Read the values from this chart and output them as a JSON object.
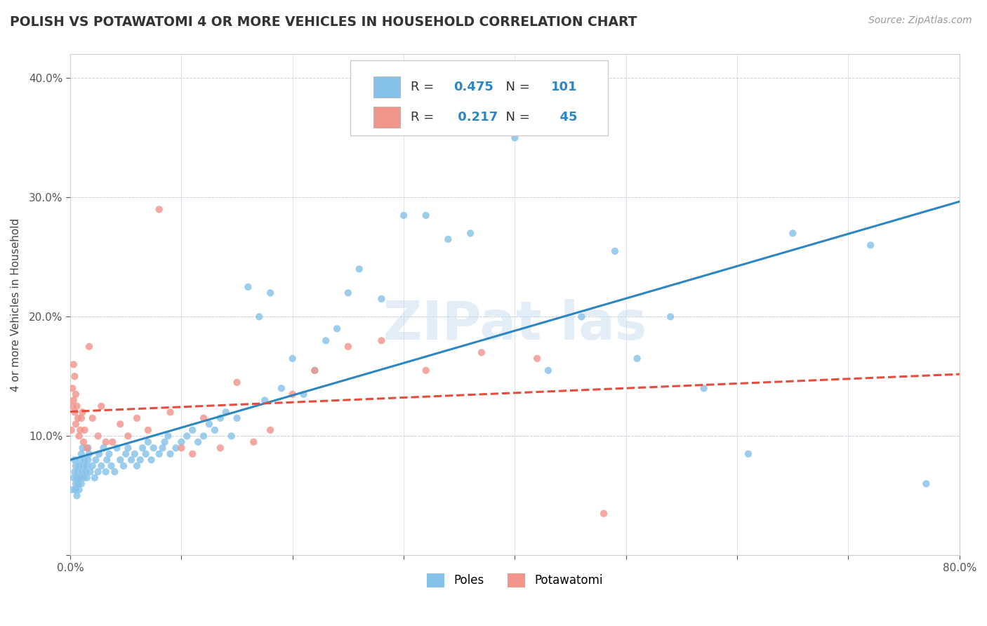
{
  "title": "POLISH VS POTAWATOMI 4 OR MORE VEHICLES IN HOUSEHOLD CORRELATION CHART",
  "source": "Source: ZipAtlas.com",
  "ylabel": "4 or more Vehicles in Household",
  "xlim": [
    0.0,
    0.8
  ],
  "ylim": [
    0.0,
    0.42
  ],
  "xticks": [
    0.0,
    0.1,
    0.2,
    0.3,
    0.4,
    0.5,
    0.6,
    0.7,
    0.8
  ],
  "yticks": [
    0.0,
    0.1,
    0.2,
    0.3,
    0.4
  ],
  "poles_R": 0.475,
  "poles_N": 101,
  "potawatomi_R": 0.217,
  "potawatomi_N": 45,
  "poles_color": "#85C1E9",
  "potawatomi_color": "#F1948A",
  "poles_line_color": "#2E86C1",
  "potawatomi_line_color": "#E74C3C",
  "watermark_color": "#C8DCF0",
  "background_color": "#FFFFFF",
  "grid_color": "#C8D0DC",
  "poles_x": [
    0.002,
    0.003,
    0.004,
    0.004,
    0.005,
    0.005,
    0.005,
    0.006,
    0.006,
    0.007,
    0.007,
    0.008,
    0.008,
    0.009,
    0.009,
    0.01,
    0.01,
    0.011,
    0.011,
    0.012,
    0.012,
    0.013,
    0.014,
    0.015,
    0.015,
    0.016,
    0.016,
    0.017,
    0.018,
    0.02,
    0.022,
    0.023,
    0.025,
    0.026,
    0.028,
    0.03,
    0.032,
    0.033,
    0.035,
    0.037,
    0.04,
    0.042,
    0.045,
    0.048,
    0.05,
    0.052,
    0.055,
    0.058,
    0.06,
    0.063,
    0.065,
    0.068,
    0.07,
    0.073,
    0.075,
    0.08,
    0.083,
    0.085,
    0.088,
    0.09,
    0.095,
    0.1,
    0.105,
    0.11,
    0.115,
    0.12,
    0.125,
    0.13,
    0.135,
    0.14,
    0.145,
    0.15,
    0.16,
    0.17,
    0.175,
    0.18,
    0.19,
    0.2,
    0.21,
    0.22,
    0.23,
    0.24,
    0.25,
    0.26,
    0.28,
    0.3,
    0.32,
    0.34,
    0.36,
    0.38,
    0.4,
    0.43,
    0.46,
    0.49,
    0.51,
    0.54,
    0.57,
    0.61,
    0.65,
    0.72,
    0.77
  ],
  "poles_y": [
    0.055,
    0.065,
    0.07,
    0.08,
    0.055,
    0.06,
    0.075,
    0.05,
    0.065,
    0.06,
    0.07,
    0.055,
    0.075,
    0.065,
    0.08,
    0.06,
    0.085,
    0.07,
    0.09,
    0.075,
    0.065,
    0.08,
    0.07,
    0.065,
    0.075,
    0.08,
    0.09,
    0.085,
    0.07,
    0.075,
    0.065,
    0.08,
    0.07,
    0.085,
    0.075,
    0.09,
    0.07,
    0.08,
    0.085,
    0.075,
    0.07,
    0.09,
    0.08,
    0.075,
    0.085,
    0.09,
    0.08,
    0.085,
    0.075,
    0.08,
    0.09,
    0.085,
    0.095,
    0.08,
    0.09,
    0.085,
    0.09,
    0.095,
    0.1,
    0.085,
    0.09,
    0.095,
    0.1,
    0.105,
    0.095,
    0.1,
    0.11,
    0.105,
    0.115,
    0.12,
    0.1,
    0.115,
    0.225,
    0.2,
    0.13,
    0.22,
    0.14,
    0.165,
    0.135,
    0.155,
    0.18,
    0.19,
    0.22,
    0.24,
    0.215,
    0.285,
    0.285,
    0.265,
    0.27,
    0.355,
    0.35,
    0.155,
    0.2,
    0.255,
    0.165,
    0.2,
    0.14,
    0.085,
    0.27,
    0.26,
    0.06
  ],
  "potawatomi_x": [
    0.001,
    0.002,
    0.002,
    0.003,
    0.003,
    0.004,
    0.004,
    0.005,
    0.005,
    0.006,
    0.007,
    0.008,
    0.009,
    0.01,
    0.011,
    0.012,
    0.013,
    0.015,
    0.017,
    0.02,
    0.025,
    0.028,
    0.032,
    0.038,
    0.045,
    0.052,
    0.06,
    0.07,
    0.08,
    0.09,
    0.1,
    0.11,
    0.12,
    0.135,
    0.15,
    0.165,
    0.18,
    0.2,
    0.22,
    0.25,
    0.28,
    0.32,
    0.37,
    0.42,
    0.48
  ],
  "potawatomi_y": [
    0.105,
    0.14,
    0.125,
    0.16,
    0.13,
    0.12,
    0.15,
    0.11,
    0.135,
    0.125,
    0.115,
    0.1,
    0.105,
    0.115,
    0.12,
    0.095,
    0.105,
    0.09,
    0.175,
    0.115,
    0.1,
    0.125,
    0.095,
    0.095,
    0.11,
    0.1,
    0.115,
    0.105,
    0.29,
    0.12,
    0.09,
    0.085,
    0.115,
    0.09,
    0.145,
    0.095,
    0.105,
    0.135,
    0.155,
    0.175,
    0.18,
    0.155,
    0.17,
    0.165,
    0.035
  ],
  "title_fontsize": 13.5,
  "axis_label_fontsize": 11,
  "tick_fontsize": 11,
  "legend_fontsize": 13,
  "source_fontsize": 10
}
